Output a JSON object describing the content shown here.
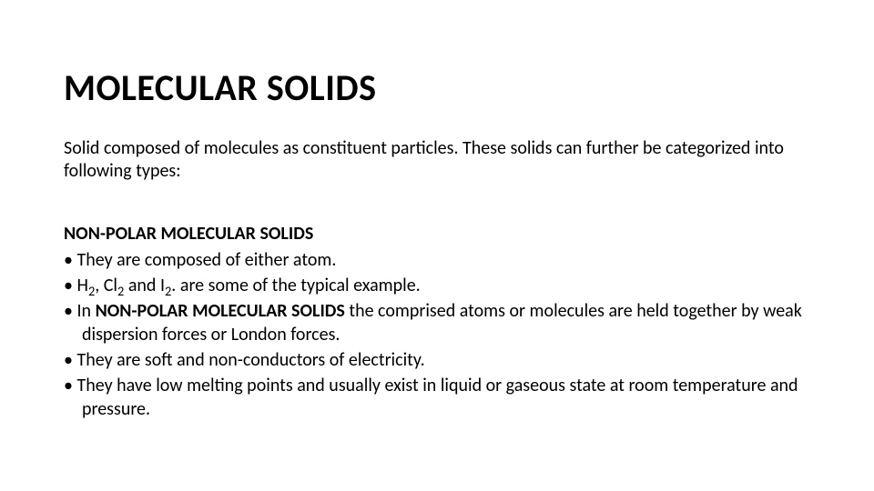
{
  "slide": {
    "background_color": "#ffffff",
    "text_color": "#000000",
    "title": {
      "text": "MOLECULAR SOLIDS",
      "font_size_pt": 40,
      "font_weight": 700
    },
    "intro": {
      "text": "Solid composed of molecules as constituent particles. These solids can further be categorized into following types:",
      "font_size_pt": 20,
      "font_weight": 400
    },
    "subheading": {
      "text": "NON-POLAR MOLECULAR SOLIDS",
      "font_size_pt": 20,
      "font_weight": 700
    },
    "bullets": [
      {
        "text": "They are composed of either atom."
      },
      {
        "prefix": "H",
        "sub1": "2",
        "mid1": ", Cl",
        "sub2": "2",
        "mid2": " and I",
        "sub3": "2",
        "suffix": ". are some of the typical example."
      },
      {
        "lead": "In ",
        "bold": "NON-POLAR MOLECULAR SOLIDS",
        "tail": " the comprised atoms or molecules are held together by weak dispersion forces or London forces."
      },
      {
        "text": "They are soft and non-conductors of electricity."
      },
      {
        "text": "They have low melting points and usually exist in liquid or gaseous state at room temperature and pressure."
      }
    ],
    "bullet_font_size_pt": 20,
    "font_family": "Calibri"
  }
}
